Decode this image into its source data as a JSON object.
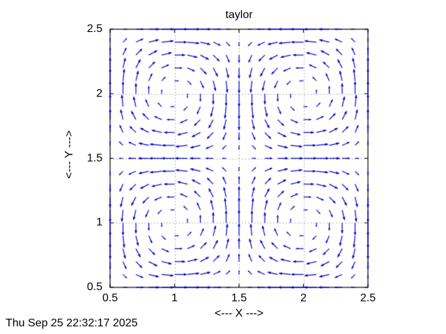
{
  "timestamp": "Thu Sep 25 22:32:17 2025",
  "chart_data": {
    "type": "quiver",
    "title": "taylor",
    "xlabel": "<--- X --->",
    "ylabel": "<--- Y --->",
    "xlim": [
      0.5,
      2.5
    ],
    "ylim": [
      0.5,
      2.5
    ],
    "x_ticks": [
      "0.5",
      "1",
      "1.5",
      "2",
      "2.5"
    ],
    "x_tick_values": [
      0.5,
      1,
      1.5,
      2,
      2.5
    ],
    "y_ticks": [
      "0.5",
      "1",
      "1.5",
      "2",
      "2.5"
    ],
    "y_tick_values": [
      0.5,
      1,
      1.5,
      2,
      2.5
    ],
    "grid_lines": {
      "x": [
        1,
        1.5,
        2
      ],
      "y": [
        1,
        1.5,
        2
      ],
      "style": "dotted"
    },
    "vector_grid": {
      "x_start": 0.5,
      "x_end": 2.5,
      "x_step": 0.1,
      "nx": 21,
      "y_start": 0.5,
      "y_end": 2.5,
      "y_step": 0.1,
      "ny": 21
    },
    "field": {
      "u": "-cos(pi*x)*sin(pi*y)",
      "v": "sin(pi*x)*cos(pi*y)",
      "scale": 0.1,
      "description": "Taylor-Green vortex velocity field: four alternating vortices centered at (1,1), (1,2), (2,1), (2,2); clockwise at (1,2) and (2,1), counterclockwise at (1,1) and (2,2); zero velocity at vortex centers and corners"
    },
    "colors": {
      "vectors": "#0000cc",
      "grid": "#9a9a9a",
      "axes": "#000000",
      "background": "#ffffff"
    },
    "legend": "none",
    "grid_on": true
  }
}
